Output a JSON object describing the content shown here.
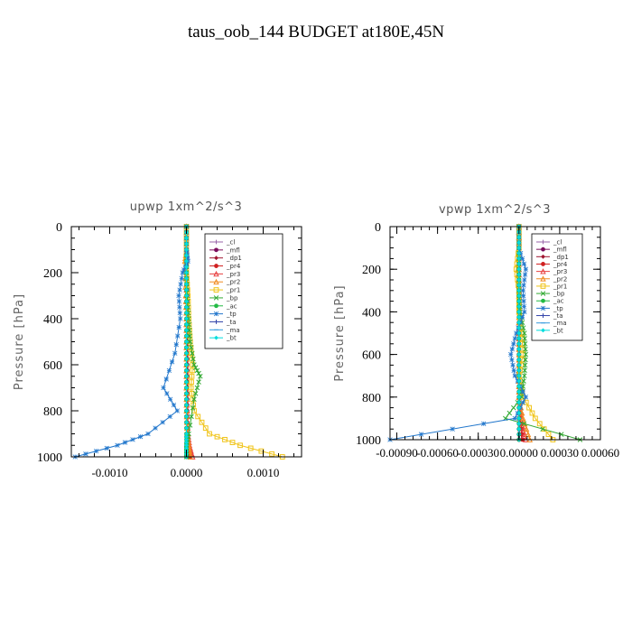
{
  "figure": {
    "title": "taus_oob_144  BUDGET at180E,45N"
  },
  "chart_data": [
    {
      "type": "line",
      "title": "upwp   1xm^2/s^3",
      "xlabel": "",
      "ylabel": "Pressure [hPa]",
      "xlim": [
        -0.0015,
        0.0015
      ],
      "ylim": [
        1000,
        0
      ],
      "x_ticks": [
        -0.001,
        0.0,
        0.001
      ],
      "x_tick_labels": [
        "-0.0010",
        "0.0000",
        "0.0010"
      ],
      "y_ticks": [
        0,
        200,
        400,
        600,
        800,
        1000
      ],
      "y_tick_labels": [
        "0",
        "200",
        "400",
        "600",
        "800",
        "1000"
      ],
      "legend_position": "top-right",
      "series": [
        {
          "name": "_cl",
          "color": "#9966aa",
          "marker": "plus",
          "x": [
            0,
            0,
            0,
            0,
            0,
            0,
            0,
            0,
            0,
            0,
            0,
            0
          ],
          "y": [
            0,
            100,
            200,
            300,
            400,
            500,
            600,
            700,
            800,
            900,
            950,
            1000
          ]
        },
        {
          "name": "_mfl",
          "color": "#7a0c5c",
          "marker": "circle",
          "x": [
            0,
            0,
            0,
            1e-05,
            1e-05,
            1e-05,
            1e-05,
            1e-05,
            1e-05,
            1e-05,
            1e-05,
            0
          ],
          "y": [
            0,
            100,
            200,
            300,
            400,
            500,
            600,
            700,
            800,
            900,
            950,
            1000
          ]
        },
        {
          "name": "_dp1",
          "color": "#a01530",
          "marker": "diamond",
          "x": [
            0,
            0,
            0,
            0,
            0,
            0,
            0,
            0,
            0,
            0,
            2e-05,
            3e-05
          ],
          "y": [
            0,
            100,
            200,
            300,
            400,
            500,
            600,
            700,
            800,
            900,
            950,
            1000
          ]
        },
        {
          "name": "_pr4",
          "color": "#d02020",
          "marker": "circle",
          "x": [
            0,
            0,
            0,
            0,
            0,
            0,
            0,
            0,
            0,
            0,
            2e-05,
            5e-05
          ],
          "y": [
            0,
            100,
            200,
            300,
            400,
            500,
            600,
            700,
            800,
            900,
            950,
            1000
          ]
        },
        {
          "name": "_pr3",
          "color": "#e84040",
          "marker": "triangle",
          "x": [
            0,
            0,
            0,
            0,
            0,
            0,
            0,
            0,
            1e-05,
            2e-05,
            4e-05,
            8e-05
          ],
          "y": [
            0,
            100,
            200,
            300,
            400,
            500,
            600,
            700,
            800,
            900,
            950,
            1000
          ]
        },
        {
          "name": "_pr2",
          "color": "#f08a20",
          "marker": "triangle",
          "x": [
            0,
            0,
            -2e-05,
            -1e-05,
            0,
            0,
            0,
            0,
            0,
            1e-05,
            3e-05,
            5e-05
          ],
          "y": [
            0,
            100,
            150,
            300,
            400,
            500,
            600,
            700,
            800,
            900,
            950,
            1000
          ]
        },
        {
          "name": "_pr1",
          "color": "#f0c419",
          "marker": "square",
          "x": [
            0,
            0,
            0,
            2e-05,
            3e-05,
            5e-05,
            8e-05,
            6e-05,
            0.0001,
            0.0003,
            0.0007,
            0.00125
          ],
          "y": [
            0,
            100,
            200,
            300,
            400,
            500,
            600,
            700,
            800,
            900,
            950,
            1000
          ]
        },
        {
          "name": "_bp",
          "color": "#33aa33",
          "marker": "x",
          "x": [
            0,
            0,
            0,
            1e-05,
            3e-05,
            5e-05,
            0.0001,
            0.00018,
            0.0001,
            3e-05,
            0,
            0
          ],
          "y": [
            0,
            100,
            200,
            300,
            400,
            500,
            600,
            650,
            750,
            900,
            950,
            1000
          ]
        },
        {
          "name": "_ac",
          "color": "#22bb44",
          "marker": "circle",
          "x": [
            0,
            0,
            0,
            0,
            0,
            0,
            0,
            0,
            0,
            0,
            0,
            0
          ],
          "y": [
            0,
            100,
            200,
            300,
            400,
            500,
            600,
            700,
            800,
            900,
            950,
            1000
          ]
        },
        {
          "name": "_tp",
          "color": "#2277cc",
          "marker": "star",
          "x": [
            0,
            0,
            2e-05,
            -5e-05,
            -0.0001,
            -8e-05,
            -0.00015,
            -0.0003,
            -0.00012,
            -0.0005,
            -0.0009,
            -0.00145
          ],
          "y": [
            0,
            100,
            150,
            200,
            300,
            400,
            550,
            700,
            800,
            900,
            950,
            1000
          ]
        },
        {
          "name": "_ta",
          "color": "#3344aa",
          "marker": "plus",
          "x": [
            0,
            0,
            0,
            0,
            0,
            0,
            0,
            0,
            0,
            0,
            0,
            0
          ],
          "y": [
            0,
            100,
            200,
            300,
            400,
            500,
            600,
            700,
            800,
            900,
            950,
            1000
          ]
        },
        {
          "name": "_ma",
          "color": "#3399dd",
          "marker": "dash",
          "x": [
            0,
            0,
            0,
            0,
            0,
            0,
            0,
            0,
            0,
            0,
            0,
            0
          ],
          "y": [
            0,
            100,
            200,
            300,
            400,
            500,
            600,
            700,
            800,
            900,
            950,
            1000
          ]
        },
        {
          "name": "_bt",
          "color": "#00dddd",
          "marker": "diamond",
          "x": [
            0,
            0,
            0,
            0,
            0,
            0,
            0,
            0,
            0,
            0,
            0,
            0
          ],
          "y": [
            0,
            100,
            200,
            300,
            400,
            500,
            600,
            700,
            800,
            900,
            950,
            1000
          ]
        }
      ]
    },
    {
      "type": "line",
      "title": "vpwp   1xm^2/s^3",
      "xlabel": "",
      "ylabel": "Pressure [hPa]",
      "xlim": [
        -0.00095,
        0.0006
      ],
      "ylim": [
        1000,
        0
      ],
      "x_ticks": [
        -0.0009,
        -0.0006,
        -0.0003,
        0.0,
        0.0003,
        0.0006
      ],
      "x_tick_labels": [
        "-0.00090",
        "-0.00060",
        "-0.00030",
        "0.00000",
        "0.00030",
        "0.00060"
      ],
      "y_ticks": [
        0,
        200,
        400,
        600,
        800,
        1000
      ],
      "y_tick_labels": [
        "0",
        "200",
        "400",
        "600",
        "800",
        "1000"
      ],
      "legend_position": "top-right",
      "series": [
        {
          "name": "_cl",
          "color": "#9966aa",
          "marker": "plus",
          "x": [
            0,
            0,
            0,
            0,
            0,
            0,
            0,
            0,
            0,
            0,
            0
          ],
          "y": [
            0,
            100,
            200,
            300,
            400,
            500,
            600,
            700,
            800,
            900,
            1000
          ]
        },
        {
          "name": "_mfl",
          "color": "#7a0c5c",
          "marker": "circle",
          "x": [
            0,
            0,
            0,
            0,
            0,
            0,
            0,
            0,
            0,
            0,
            0
          ],
          "y": [
            0,
            100,
            200,
            300,
            400,
            500,
            600,
            700,
            800,
            900,
            1000
          ]
        },
        {
          "name": "_dp1",
          "color": "#a01530",
          "marker": "diamond",
          "x": [
            0,
            0,
            0,
            0,
            0,
            0,
            0,
            0,
            0,
            1e-05,
            2e-05
          ],
          "y": [
            0,
            100,
            200,
            300,
            400,
            500,
            600,
            700,
            800,
            900,
            1000
          ]
        },
        {
          "name": "_pr4",
          "color": "#d02020",
          "marker": "circle",
          "x": [
            0,
            0,
            0,
            0,
            0,
            0,
            0,
            0,
            0,
            1e-05,
            3e-05
          ],
          "y": [
            0,
            100,
            200,
            300,
            400,
            500,
            600,
            700,
            800,
            900,
            1000
          ]
        },
        {
          "name": "_pr3",
          "color": "#e84040",
          "marker": "triangle",
          "x": [
            0,
            0,
            0,
            0,
            0,
            0,
            0,
            0,
            0,
            2e-05,
            5e-05
          ],
          "y": [
            0,
            100,
            200,
            300,
            400,
            500,
            600,
            700,
            800,
            900,
            1000
          ]
        },
        {
          "name": "_pr2",
          "color": "#f08a20",
          "marker": "triangle",
          "x": [
            0,
            0,
            -1e-05,
            0,
            0,
            0,
            0,
            0,
            0,
            3e-05,
            8e-05
          ],
          "y": [
            0,
            100,
            200,
            300,
            400,
            500,
            600,
            700,
            800,
            900,
            1000
          ]
        },
        {
          "name": "_pr1",
          "color": "#f0c419",
          "marker": "square",
          "x": [
            0,
            0,
            -2e-05,
            0,
            0,
            2e-05,
            3e-05,
            0,
            3e-05,
            0.00012,
            0.00025
          ],
          "y": [
            0,
            100,
            200,
            300,
            400,
            500,
            600,
            700,
            800,
            900,
            1000
          ]
        },
        {
          "name": "_bp",
          "color": "#33aa33",
          "marker": "x",
          "x": [
            0,
            0,
            0,
            0,
            1e-05,
            4e-05,
            5e-05,
            4e-05,
            2e-05,
            -0.0001,
            0.00045
          ],
          "y": [
            0,
            100,
            200,
            300,
            400,
            500,
            600,
            700,
            800,
            900,
            1000
          ]
        },
        {
          "name": "_ac",
          "color": "#22bb44",
          "marker": "circle",
          "x": [
            0,
            0,
            0,
            0,
            0,
            0,
            0,
            0,
            0,
            0,
            0
          ],
          "y": [
            0,
            100,
            200,
            300,
            400,
            500,
            600,
            700,
            800,
            900,
            1000
          ]
        },
        {
          "name": "_tp",
          "color": "#2277cc",
          "marker": "star",
          "x": [
            0,
            0,
            5e-05,
            3e-05,
            4e-05,
            -2e-05,
            -6e-05,
            -3e-05,
            5e-05,
            -3e-05,
            -0.00095
          ],
          "y": [
            0,
            100,
            200,
            300,
            400,
            500,
            600,
            700,
            800,
            900,
            1000
          ]
        },
        {
          "name": "_ta",
          "color": "#3344aa",
          "marker": "plus",
          "x": [
            0,
            0,
            0,
            0,
            0,
            0,
            0,
            0,
            0,
            0,
            0
          ],
          "y": [
            0,
            100,
            200,
            300,
            400,
            500,
            600,
            700,
            800,
            900,
            1000
          ]
        },
        {
          "name": "_ma",
          "color": "#3399dd",
          "marker": "dash",
          "x": [
            0,
            0,
            0,
            0,
            0,
            0,
            0,
            0,
            0,
            0,
            0
          ],
          "y": [
            0,
            100,
            200,
            300,
            400,
            500,
            600,
            700,
            800,
            900,
            1000
          ]
        },
        {
          "name": "_bt",
          "color": "#00dddd",
          "marker": "diamond",
          "x": [
            0,
            0,
            0,
            0,
            0,
            0,
            0,
            0,
            0,
            0,
            0
          ],
          "y": [
            0,
            100,
            200,
            300,
            400,
            500,
            600,
            700,
            800,
            900,
            1000
          ]
        }
      ]
    }
  ]
}
